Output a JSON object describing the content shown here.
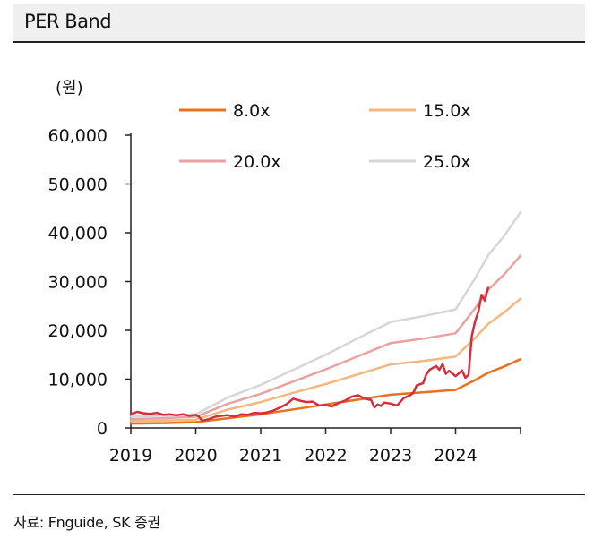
{
  "title": "PER Band",
  "source": "자료: Fnguide, SK 증권",
  "chart_data": {
    "type": "line",
    "unit": "(원)",
    "y_ticks": [
      "0",
      "10,000",
      "20,000",
      "30,000",
      "40,000",
      "50,000",
      "60,000"
    ],
    "x_ticks": [
      "2019",
      "2020",
      "2021",
      "2022",
      "2023",
      "2024"
    ],
    "x_tick_values": [
      2019.0,
      2020.0,
      2021.0,
      2022.0,
      2023.0,
      2024.0
    ],
    "xlim": [
      2019.0,
      2025.0
    ],
    "ylim": [
      0,
      60000
    ],
    "grid": false,
    "legend": "top",
    "series": [
      {
        "name": "8.0x",
        "color": "#e8711f",
        "points": [
          [
            2019.0,
            900
          ],
          [
            2019.5,
            1000
          ],
          [
            2020.0,
            1200
          ],
          [
            2020.5,
            2000
          ],
          [
            2021.0,
            2800
          ],
          [
            2021.5,
            3800
          ],
          [
            2022.0,
            4800
          ],
          [
            2022.5,
            5800
          ],
          [
            2023.0,
            6800
          ],
          [
            2023.5,
            7300
          ],
          [
            2024.0,
            7800
          ],
          [
            2024.3,
            9800
          ],
          [
            2024.5,
            11300
          ],
          [
            2024.75,
            12600
          ],
          [
            2025.0,
            14100
          ]
        ]
      },
      {
        "name": "15.0x",
        "color": "#f5b77d",
        "points": [
          [
            2019.0,
            1400
          ],
          [
            2019.5,
            1500
          ],
          [
            2020.0,
            1700
          ],
          [
            2020.5,
            3800
          ],
          [
            2021.0,
            5300
          ],
          [
            2021.5,
            7200
          ],
          [
            2022.0,
            9000
          ],
          [
            2022.5,
            11000
          ],
          [
            2023.0,
            13000
          ],
          [
            2023.5,
            13700
          ],
          [
            2024.0,
            14600
          ],
          [
            2024.3,
            18400
          ],
          [
            2024.5,
            21300
          ],
          [
            2024.75,
            23700
          ],
          [
            2025.0,
            26500
          ]
        ]
      },
      {
        "name": "20.0x",
        "color": "#e8a3a0",
        "points": [
          [
            2019.0,
            1800
          ],
          [
            2019.5,
            2000
          ],
          [
            2020.0,
            2300
          ],
          [
            2020.5,
            5000
          ],
          [
            2021.0,
            7000
          ],
          [
            2021.5,
            9500
          ],
          [
            2022.0,
            12000
          ],
          [
            2022.5,
            14700
          ],
          [
            2023.0,
            17400
          ],
          [
            2023.5,
            18300
          ],
          [
            2024.0,
            19400
          ],
          [
            2024.3,
            24500
          ],
          [
            2024.5,
            28300
          ],
          [
            2024.75,
            31500
          ],
          [
            2025.0,
            35300
          ]
        ]
      },
      {
        "name": "25.0x",
        "color": "#d6d6d6",
        "points": [
          [
            2019.0,
            2300
          ],
          [
            2019.5,
            2500
          ],
          [
            2020.0,
            2800
          ],
          [
            2020.5,
            6300
          ],
          [
            2021.0,
            8800
          ],
          [
            2021.5,
            11900
          ],
          [
            2022.0,
            15000
          ],
          [
            2022.5,
            18400
          ],
          [
            2023.0,
            21700
          ],
          [
            2023.5,
            22900
          ],
          [
            2024.0,
            24300
          ],
          [
            2024.3,
            30600
          ],
          [
            2024.5,
            35400
          ],
          [
            2024.75,
            39400
          ],
          [
            2025.0,
            44200
          ]
        ]
      },
      {
        "color": "#d62d3b",
        "points": [
          [
            2019.0,
            2800
          ],
          [
            2019.1,
            3300
          ],
          [
            2019.2,
            3000
          ],
          [
            2019.3,
            2900
          ],
          [
            2019.4,
            3100
          ],
          [
            2019.5,
            2700
          ],
          [
            2019.6,
            2800
          ],
          [
            2019.7,
            2600
          ],
          [
            2019.8,
            2800
          ],
          [
            2019.9,
            2500
          ],
          [
            2020.0,
            2700
          ],
          [
            2020.05,
            2300
          ],
          [
            2020.1,
            1500
          ],
          [
            2020.2,
            1800
          ],
          [
            2020.3,
            2300
          ],
          [
            2020.4,
            2500
          ],
          [
            2020.5,
            2600
          ],
          [
            2020.6,
            2300
          ],
          [
            2020.7,
            2800
          ],
          [
            2020.8,
            2700
          ],
          [
            2020.9,
            3100
          ],
          [
            2021.0,
            3000
          ],
          [
            2021.1,
            3200
          ],
          [
            2021.2,
            3600
          ],
          [
            2021.3,
            4200
          ],
          [
            2021.4,
            4900
          ],
          [
            2021.5,
            6000
          ],
          [
            2021.6,
            5600
          ],
          [
            2021.7,
            5300
          ],
          [
            2021.8,
            5400
          ],
          [
            2021.9,
            4600
          ],
          [
            2022.0,
            4700
          ],
          [
            2022.1,
            4400
          ],
          [
            2022.2,
            5100
          ],
          [
            2022.3,
            5600
          ],
          [
            2022.4,
            6400
          ],
          [
            2022.5,
            6700
          ],
          [
            2022.6,
            6000
          ],
          [
            2022.7,
            5700
          ],
          [
            2022.75,
            4200
          ],
          [
            2022.8,
            4800
          ],
          [
            2022.85,
            4500
          ],
          [
            2022.9,
            5200
          ],
          [
            2023.0,
            5000
          ],
          [
            2023.1,
            4600
          ],
          [
            2023.2,
            6100
          ],
          [
            2023.3,
            6700
          ],
          [
            2023.35,
            7200
          ],
          [
            2023.4,
            8700
          ],
          [
            2023.5,
            9200
          ],
          [
            2023.55,
            11000
          ],
          [
            2023.6,
            11900
          ],
          [
            2023.7,
            12700
          ],
          [
            2023.75,
            11900
          ],
          [
            2023.8,
            13100
          ],
          [
            2023.85,
            11100
          ],
          [
            2023.9,
            11700
          ],
          [
            2024.0,
            10600
          ],
          [
            2024.05,
            11200
          ],
          [
            2024.1,
            11800
          ],
          [
            2024.15,
            10300
          ],
          [
            2024.2,
            10900
          ],
          [
            2024.25,
            18800
          ],
          [
            2024.3,
            21800
          ],
          [
            2024.35,
            23800
          ],
          [
            2024.4,
            27300
          ],
          [
            2024.45,
            26100
          ],
          [
            2024.5,
            28700
          ]
        ]
      }
    ]
  }
}
